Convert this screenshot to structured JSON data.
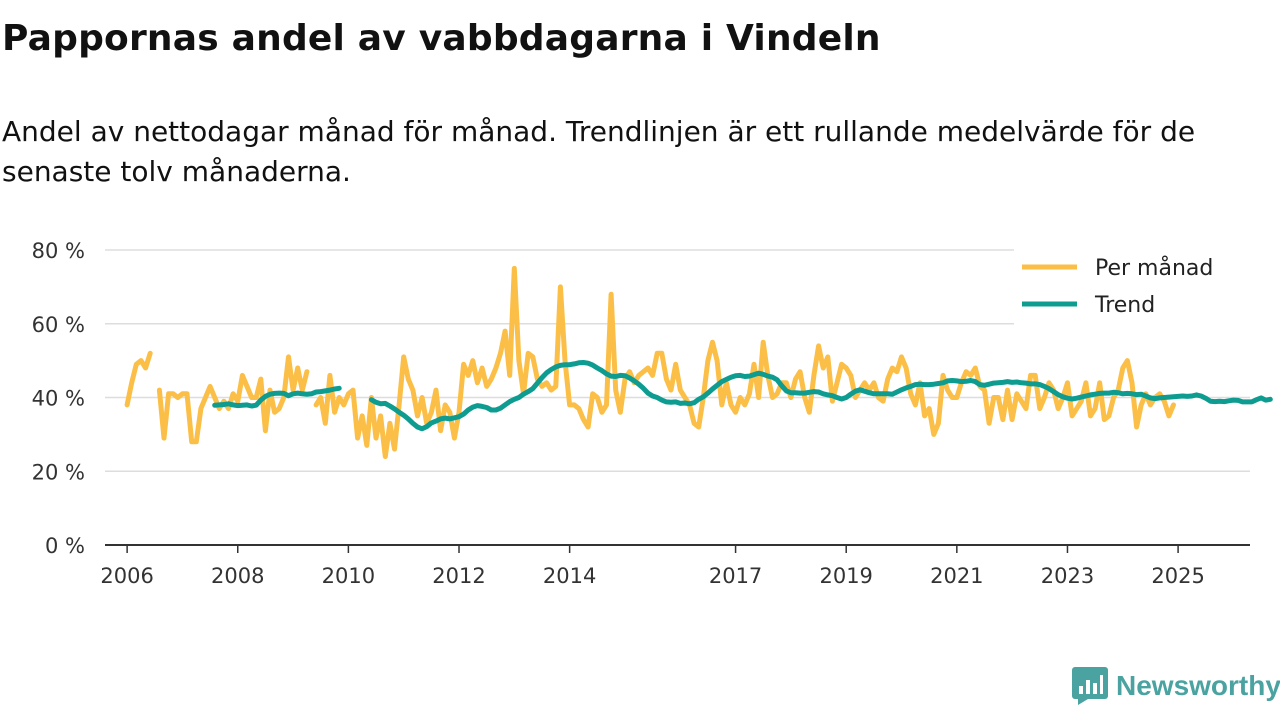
{
  "header": {
    "title": "Pappornas andel av vabbdagarna i Vindeln",
    "subtitle": "Andel av nettodagar månad för månad. Trendlinjen är ett rullande medelvärde för de senaste tolv månaderna."
  },
  "branding": {
    "name": "Newsworthy",
    "color": "#4aa3a1",
    "icon": "bar-chart-icon"
  },
  "colors": {
    "monthly": "#fbbf47",
    "trend": "#0e9c91",
    "grid": "#dddddd",
    "axis": "#333333"
  },
  "chart_data": {
    "type": "line",
    "title": "Pappornas andel av vabbdagarna i Vindeln",
    "xlabel": "",
    "ylabel": "",
    "ylim": [
      0,
      80
    ],
    "xlim": [
      2005.6,
      2026.3
    ],
    "yticks": [
      0,
      20,
      40,
      60,
      80
    ],
    "ytick_labels": [
      "0 %",
      "20 %",
      "40 %",
      "60 %",
      "80 %"
    ],
    "xticks": [
      2006,
      2008,
      2010,
      2012,
      2014,
      2017,
      2019,
      2021,
      2023,
      2025
    ],
    "xtick_labels": [
      "2006",
      "2008",
      "2010",
      "2012",
      "2014",
      "2017",
      "2019",
      "2021",
      "2023",
      "2025"
    ],
    "legend": {
      "position": "top-right",
      "entries": [
        "Per månad",
        "Trend"
      ]
    },
    "grid": true,
    "series": [
      {
        "name": "Per månad",
        "segments": [
          {
            "start_year": 2006,
            "start_month": 1,
            "values": [
              38,
              44,
              49,
              50,
              48,
              52
            ]
          },
          {
            "start_year": 2006,
            "start_month": 8,
            "values": [
              42,
              29,
              41,
              41,
              40,
              41,
              41,
              28,
              28,
              37,
              40,
              43,
              40,
              37,
              39,
              37,
              41,
              39,
              46,
              43,
              40,
              40,
              45,
              31,
              42,
              36,
              37,
              40,
              51,
              42,
              48,
              42,
              47
            ]
          },
          {
            "start_year": 2009,
            "start_month": 6,
            "values": [
              38,
              40,
              33,
              46,
              36,
              40,
              38,
              41,
              42,
              29,
              35,
              27,
              40,
              29,
              35,
              24,
              33,
              26,
              38,
              51,
              45,
              42,
              35,
              40,
              33,
              36,
              42,
              31,
              38,
              36,
              29,
              36,
              49,
              46,
              50,
              44,
              48,
              43,
              45,
              48,
              52,
              58,
              46,
              75,
              50,
              41,
              52,
              51,
              45,
              43,
              44,
              42,
              43,
              70,
              50,
              38,
              38,
              37,
              34,
              32,
              41,
              40,
              36,
              38,
              68,
              42,
              36,
              45,
              47,
              44,
              46,
              47,
              48,
              46,
              52,
              52,
              45,
              42,
              49,
              42,
              40,
              38,
              33,
              32,
              40,
              50,
              55,
              50,
              38,
              44,
              38,
              36,
              40,
              38,
              41,
              49,
              40,
              55,
              46,
              40,
              41,
              44,
              44,
              40,
              45,
              47,
              40,
              36,
              46,
              54,
              48,
              51,
              39,
              44,
              49,
              48,
              46,
              40,
              42,
              44,
              42,
              44,
              40,
              39,
              45,
              48,
              47,
              51,
              48,
              41,
              38,
              44,
              35,
              37,
              30,
              33,
              46,
              42,
              40,
              40,
              44,
              47,
              46,
              48,
              43,
              42,
              33,
              40,
              40,
              34,
              42,
              34,
              41,
              39,
              37,
              46,
              46,
              37,
              40,
              44,
              42,
              37,
              40,
              44,
              35,
              37,
              39,
              44,
              35,
              37,
              44,
              34,
              35,
              40,
              42,
              48,
              50,
              44,
              32,
              38,
              41,
              38,
              40,
              41,
              39,
              35,
              38
            ]
          }
        ]
      },
      {
        "name": "Trend",
        "segments": [
          {
            "start_year": 2007,
            "start_month": 8,
            "values": [
              37.9,
              38.0,
              38.1,
              38.3,
              38.0,
              37.8,
              37.9,
              38.0,
              37.7,
              37.9,
              39.3,
              40.3,
              40.9,
              41.1,
              41.2,
              41.1,
              40.5,
              41.0,
              41.2,
              41.0,
              40.9,
              41.0,
              41.5,
              41.6,
              41.8,
              42.0,
              42.3,
              42.5
            ]
          },
          {
            "start_year": 2010,
            "start_month": 6,
            "values": [
              39.4,
              38.7,
              38.3,
              38.4,
              37.7,
              36.9,
              36.0,
              35.2,
              34.2,
              33.0,
              32.0,
              31.5,
              32.1,
              33.1,
              33.6,
              34.2,
              34.4,
              34.2,
              34.5,
              34.8,
              35.5,
              36.6,
              37.4,
              37.8,
              37.6,
              37.3,
              36.6,
              36.6,
              37.1,
              38.0,
              38.9,
              39.5,
              40.0,
              40.9,
              41.6,
              42.4,
              43.9,
              45.4,
              46.7,
              47.6,
              48.3,
              48.7,
              48.9,
              48.9,
              49.1,
              49.4,
              49.5,
              49.3,
              48.8,
              48.0,
              47.3,
              46.4,
              45.8,
              45.7,
              46.0,
              45.9,
              45.3,
              44.5,
              43.6,
              42.5,
              41.2,
              40.4,
              40.0,
              39.3,
              38.8,
              38.7,
              38.8,
              38.4,
              38.5,
              38.3,
              38.6,
              39.5,
              40.2,
              41.2,
              42.3,
              43.3,
              44.3,
              44.9,
              45.5,
              45.9,
              46.0,
              45.7,
              45.8,
              46.2,
              46.6,
              46.3,
              45.8,
              45.5,
              44.8,
              43.2,
              41.8,
              41.3,
              41.3,
              41.2,
              41.2,
              41.4,
              41.6,
              41.5,
              41.0,
              40.7,
              40.5,
              40.0,
              39.6,
              40.0,
              40.9,
              41.7,
              42.1,
              41.7,
              41.3,
              41.0,
              41.0,
              41.0,
              41.0,
              40.9,
              41.5,
              42.1,
              42.6,
              43.0,
              43.5,
              43.6,
              43.5,
              43.5,
              43.6,
              43.8,
              44.0,
              44.5,
              44.6,
              44.5,
              44.3,
              44.4,
              44.6,
              44.3,
              43.5,
              43.3,
              43.6,
              43.9,
              44.0,
              44.1,
              44.3,
              44.1,
              44.2,
              44.0,
              43.9,
              43.7,
              43.7,
              43.5,
              43.0,
              42.4,
              41.6,
              40.8,
              40.2,
              39.8,
              39.6,
              39.8,
              40.1,
              40.4,
              40.7,
              40.9,
              41.1,
              41.2,
              41.2,
              41.4,
              41.3,
              41.0,
              41.1,
              41.0,
              40.8,
              40.9,
              40.4,
              39.9,
              39.7,
              39.9,
              40.0,
              40.1,
              40.2,
              40.3,
              40.4,
              40.3,
              40.4,
              40.7,
              40.4,
              39.8,
              39.0,
              38.9,
              39.0,
              38.9,
              39.1,
              39.3,
              39.2,
              38.8,
              38.8,
              38.8,
              39.4,
              39.9,
              39.3,
              39.5
            ]
          }
        ]
      }
    ]
  }
}
